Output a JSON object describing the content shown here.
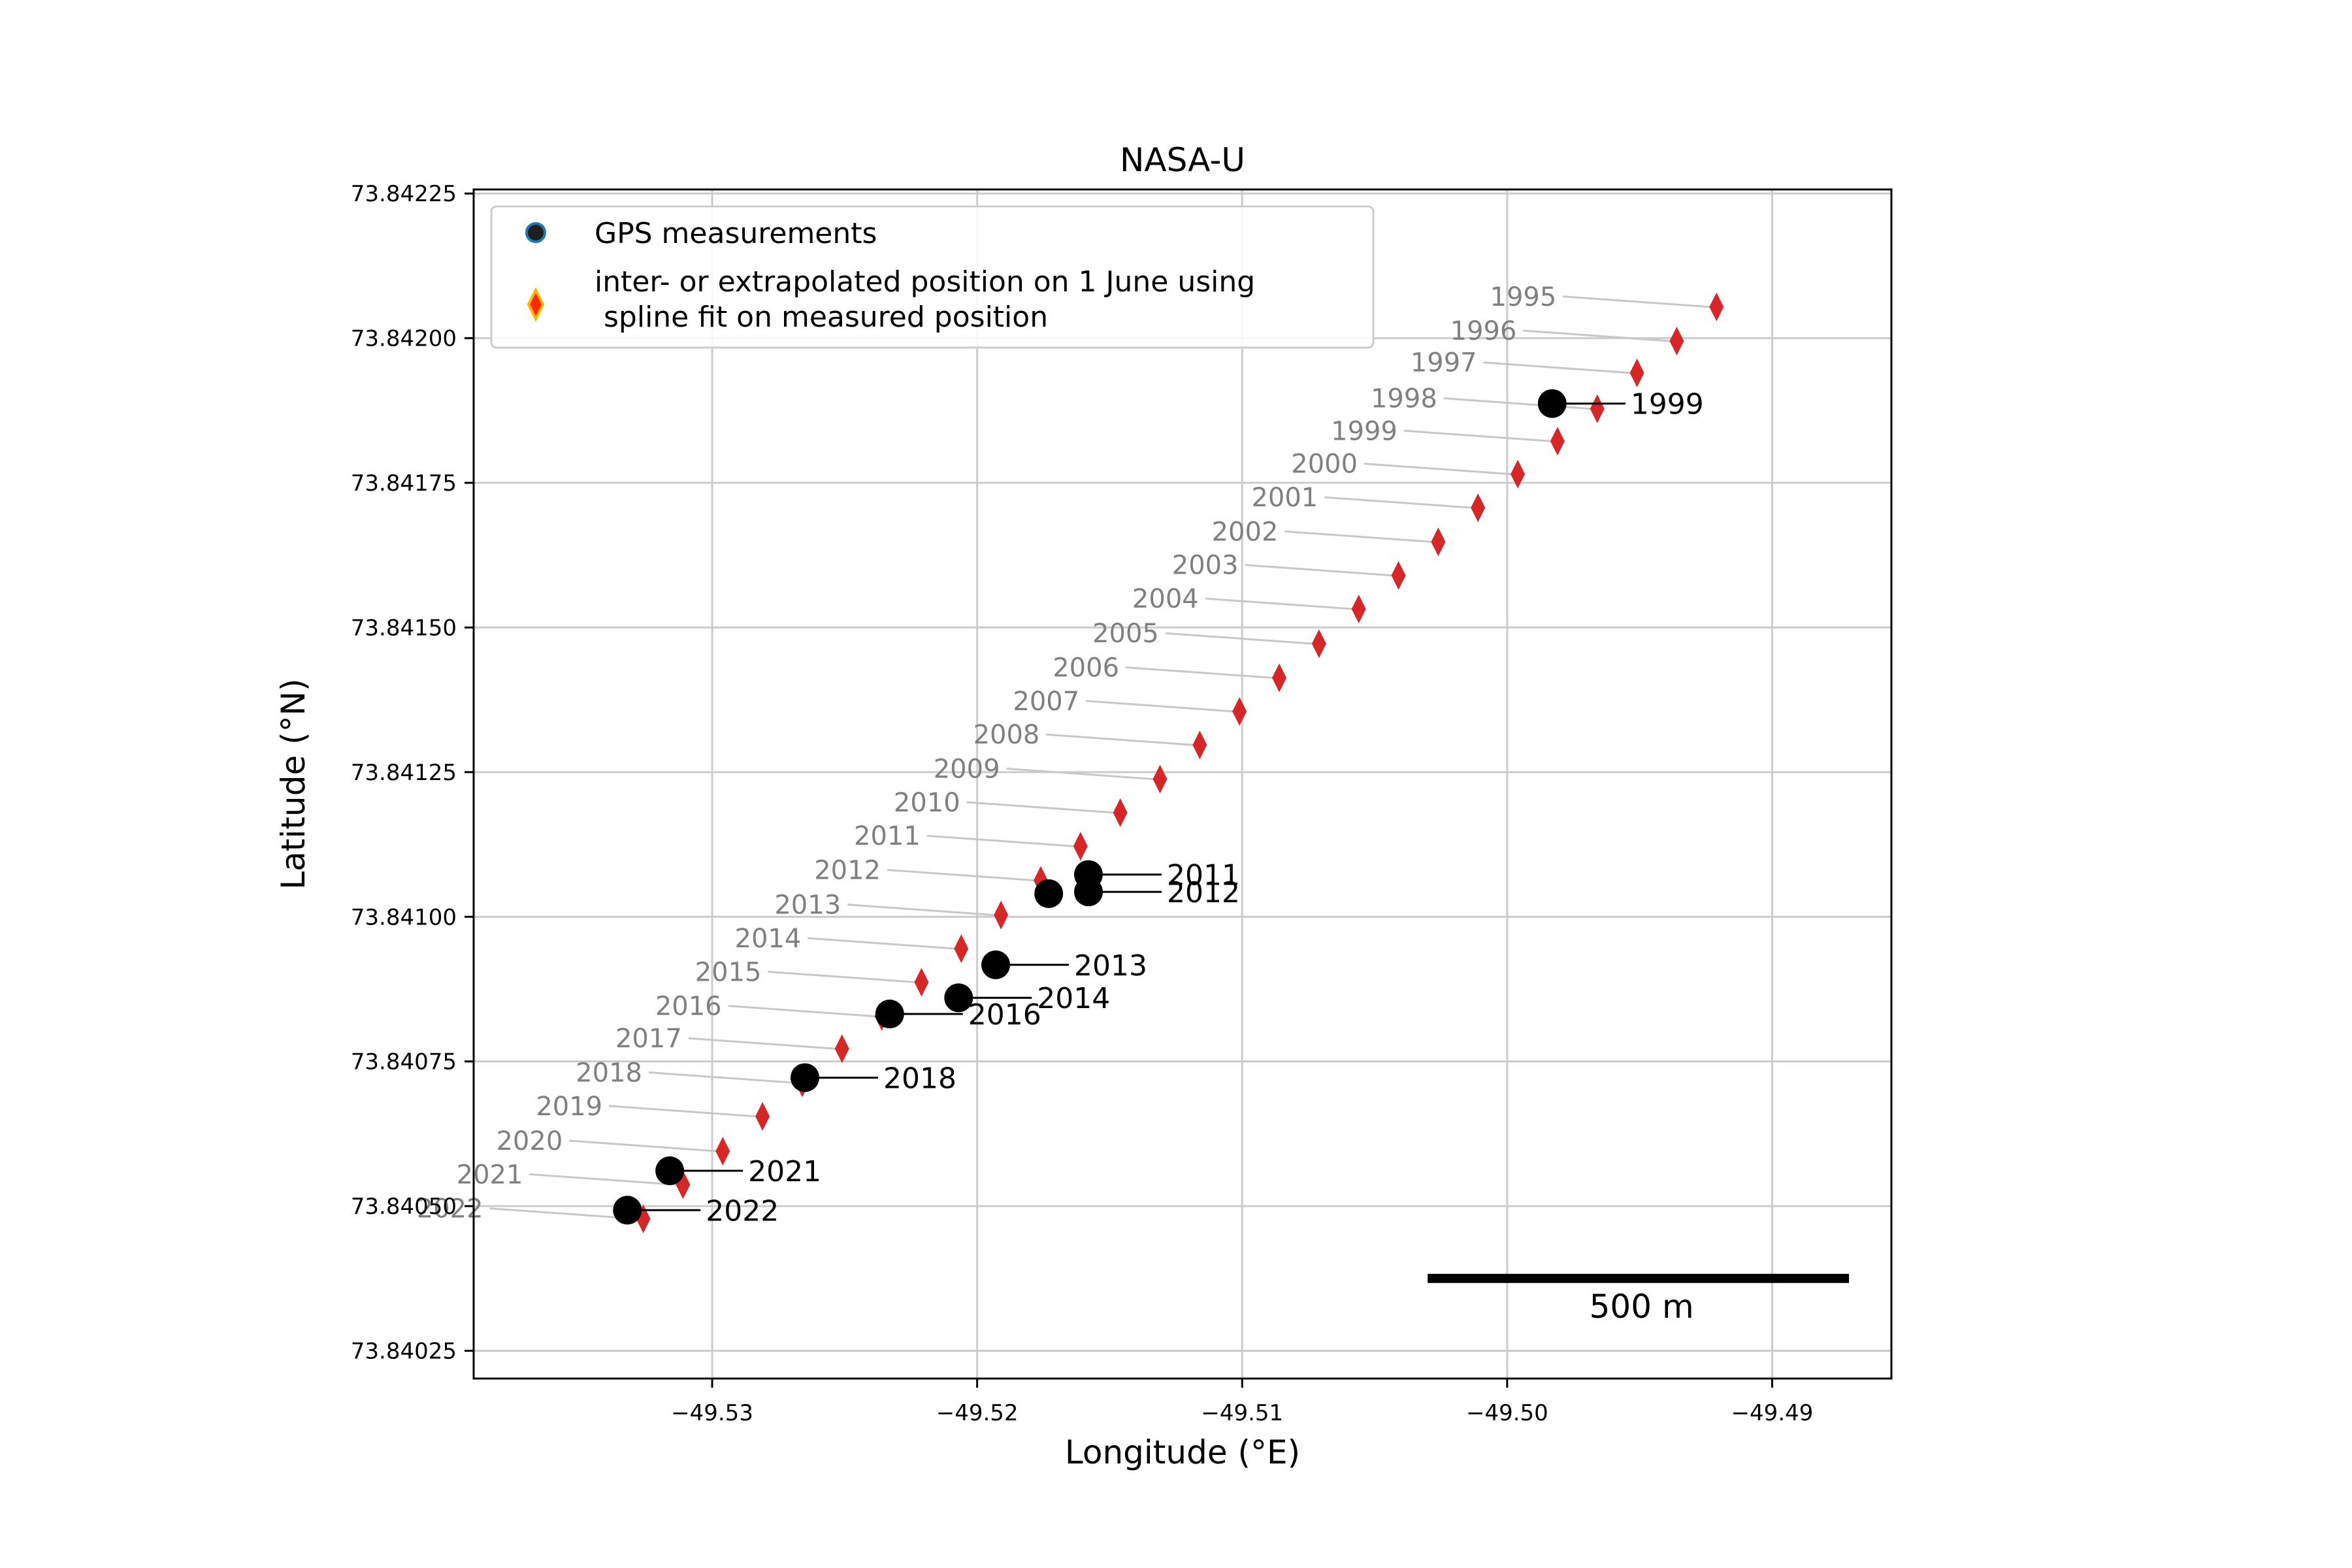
{
  "chart_data": {
    "type": "scatter",
    "title": "NASA-U",
    "xlabel": "Longitude (°E)",
    "ylabel": "Latitude (°N)",
    "xlim": [
      -49.539,
      -49.4855
    ],
    "ylim": [
      73.840202,
      73.842257
    ],
    "xticks": [
      -49.53,
      -49.52,
      -49.51,
      -49.5,
      -49.49
    ],
    "xtick_labels": [
      "−49.53",
      "−49.52",
      "−49.51",
      "−49.50",
      "−49.49"
    ],
    "yticks": [
      73.84025,
      73.8405,
      73.84075,
      73.841,
      73.84125,
      73.8415,
      73.84175,
      73.842,
      73.84225
    ],
    "ytick_labels": [
      "73.84025",
      "73.84050",
      "73.84075",
      "73.84100",
      "73.84125",
      "73.84150",
      "73.84175",
      "73.84200",
      "73.84225"
    ],
    "grid": true,
    "legend_position": "top-left",
    "legend": [
      {
        "label_lines": [
          "GPS measurements"
        ],
        "marker": "circle"
      },
      {
        "label_lines": [
          "inter- or extrapolated position on 1 June using",
          " spline fit on measured position"
        ],
        "marker": "diamond"
      }
    ],
    "series": [
      {
        "name": "GPS measurements",
        "color": "#000000",
        "points": [
          {
            "year": "1999",
            "lon": -49.4983,
            "lat": 73.841887
          },
          {
            "year": "2011",
            "lon": -49.5158,
            "lat": 73.841073
          },
          {
            "year": "2012",
            "lon": -49.5158,
            "lat": 73.841043
          },
          {
            "year": "2012",
            "lon": -49.5173,
            "lat": 73.84104
          },
          {
            "year": "2013",
            "lon": -49.5193,
            "lat": 73.840917
          },
          {
            "year": "2014",
            "lon": -49.5207,
            "lat": 73.84086
          },
          {
            "year": "2016",
            "lon": -49.5233,
            "lat": 73.840832
          },
          {
            "year": "2018",
            "lon": -49.5265,
            "lat": 73.840722
          },
          {
            "year": "2021",
            "lon": -49.5316,
            "lat": 73.840561
          },
          {
            "year": "2022",
            "lon": -49.5332,
            "lat": 73.840493
          }
        ],
        "labels": [
          {
            "text": "1999",
            "lon": -49.4983,
            "lat": 73.841887
          },
          {
            "text": "2011",
            "lon": -49.5158,
            "lat": 73.841073
          },
          {
            "text": "2012",
            "lon": -49.5158,
            "lat": 73.841043
          },
          {
            "text": "2013",
            "lon": -49.5193,
            "lat": 73.840917
          },
          {
            "text": "2014",
            "lon": -49.5207,
            "lat": 73.84086
          },
          {
            "text": "2016",
            "lon": -49.5233,
            "lat": 73.840832
          },
          {
            "text": "2018",
            "lon": -49.5265,
            "lat": 73.840722
          },
          {
            "text": "2021",
            "lon": -49.5316,
            "lat": 73.840561
          },
          {
            "text": "2022",
            "lon": -49.5332,
            "lat": 73.840493
          }
        ]
      },
      {
        "name": "inter- or extrapolated position on 1 June using spline fit on measured position",
        "color": "#d62728",
        "points": [
          {
            "year": "1995",
            "lon": -49.4921,
            "lat": 73.842054
          },
          {
            "year": "1996",
            "lon": -49.4936,
            "lat": 73.841995
          },
          {
            "year": "1997",
            "lon": -49.4951,
            "lat": 73.84194
          },
          {
            "year": "1998",
            "lon": -49.4966,
            "lat": 73.841878
          },
          {
            "year": "1999",
            "lon": -49.4981,
            "lat": 73.841822
          },
          {
            "year": "2000",
            "lon": -49.4996,
            "lat": 73.841765
          },
          {
            "year": "2001",
            "lon": -49.5011,
            "lat": 73.841707
          },
          {
            "year": "2002",
            "lon": -49.5026,
            "lat": 73.841648
          },
          {
            "year": "2003",
            "lon": -49.5041,
            "lat": 73.84159
          },
          {
            "year": "2004",
            "lon": -49.5056,
            "lat": 73.841532
          },
          {
            "year": "2005",
            "lon": -49.5071,
            "lat": 73.841472
          },
          {
            "year": "2006",
            "lon": -49.5086,
            "lat": 73.841413
          },
          {
            "year": "2007",
            "lon": -49.5101,
            "lat": 73.841355
          },
          {
            "year": "2008",
            "lon": -49.5116,
            "lat": 73.841297
          },
          {
            "year": "2009",
            "lon": -49.5131,
            "lat": 73.841238
          },
          {
            "year": "2010",
            "lon": -49.5146,
            "lat": 73.84118
          },
          {
            "year": "2011",
            "lon": -49.5161,
            "lat": 73.841122
          },
          {
            "year": "2012",
            "lon": -49.5176,
            "lat": 73.841063
          },
          {
            "year": "2013",
            "lon": -49.5191,
            "lat": 73.841003
          },
          {
            "year": "2014",
            "lon": -49.5206,
            "lat": 73.840945
          },
          {
            "year": "2015",
            "lon": -49.5221,
            "lat": 73.840887
          },
          {
            "year": "2016",
            "lon": -49.5236,
            "lat": 73.840828
          },
          {
            "year": "2017",
            "lon": -49.5251,
            "lat": 73.840772
          },
          {
            "year": "2018",
            "lon": -49.5266,
            "lat": 73.840713
          },
          {
            "year": "2019",
            "lon": -49.5281,
            "lat": 73.840655
          },
          {
            "year": "2020",
            "lon": -49.5296,
            "lat": 73.840595
          },
          {
            "year": "2021",
            "lon": -49.5311,
            "lat": 73.840537
          },
          {
            "year": "2022",
            "lon": -49.5326,
            "lat": 73.840478
          }
        ]
      }
    ],
    "scale_bar": {
      "label": "500 m",
      "lon_start": -49.503,
      "lon_end": -49.4871,
      "lat": 73.840375
    }
  }
}
